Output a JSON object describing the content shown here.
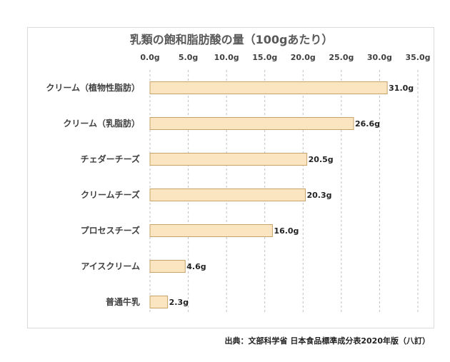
{
  "chart_data": {
    "type": "bar",
    "orientation": "horizontal",
    "title": "乳類の飽和脂肪酸の量（100gあたり）",
    "categories": [
      "クリーム（植物性脂肪）",
      "クリーム（乳脂肪）",
      "チェダーチーズ",
      "クリームチーズ",
      "プロセスチーズ",
      "アイスクリーム",
      "普通牛乳"
    ],
    "values": [
      31.0,
      26.6,
      20.5,
      20.3,
      16.0,
      4.6,
      2.3
    ],
    "value_labels": [
      "31.0g",
      "26.6g",
      "20.5g",
      "20.3g",
      "16.0g",
      "4.6g",
      "2.3g"
    ],
    "xlim": [
      0,
      35
    ],
    "x_ticks": [
      0,
      5,
      10,
      15,
      20,
      25,
      30,
      35
    ],
    "x_tick_labels": [
      "0.0g",
      "5.0g",
      "10.0g",
      "15.0g",
      "20.0g",
      "25.0g",
      "30.0g",
      "35.0g"
    ],
    "x_axis_position": "top",
    "grid": "vertical dashed",
    "legend": "none",
    "bar_color": "#fbe5c0",
    "bar_edge_color": "#c9a26a",
    "source": "出典：文部科学省 日本食品標準成分表2020年版（八訂）"
  }
}
